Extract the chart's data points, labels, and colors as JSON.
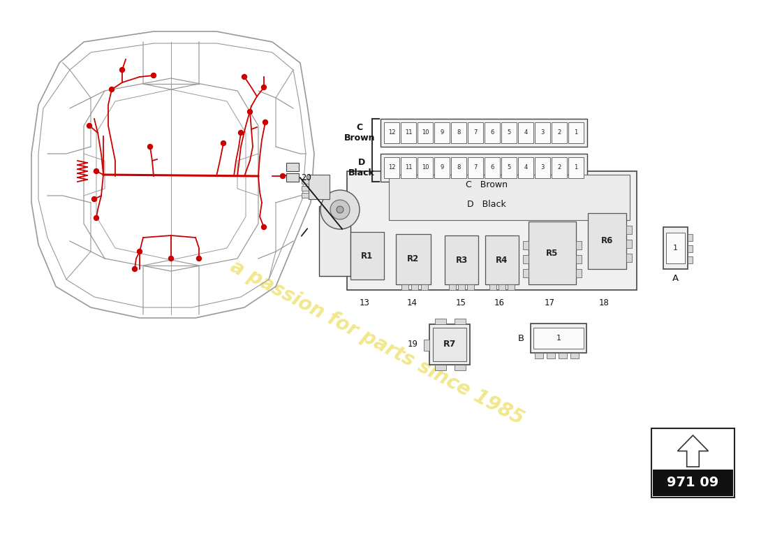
{
  "bg_color": "#ffffff",
  "watermark_text": "a passion for parts since 1985",
  "page_number": "971 09",
  "wiring_color": "#cc0000",
  "car_color": "#999999",
  "fuse_strip_C_label": "C\nBrown",
  "fuse_strip_D_label": "D\nBlack",
  "fuse_slots": 12,
  "relay_labels_main": [
    "R1",
    "R2",
    "R3",
    "R4",
    "R5",
    "R6"
  ],
  "relay_label_standalone": "R7",
  "num_labels": [
    13,
    14,
    15,
    16,
    17,
    18,
    19,
    20
  ],
  "comp_A_label": "A",
  "comp_B_label": "B",
  "brown_label": "C   Brown",
  "black_label": "D   Black"
}
